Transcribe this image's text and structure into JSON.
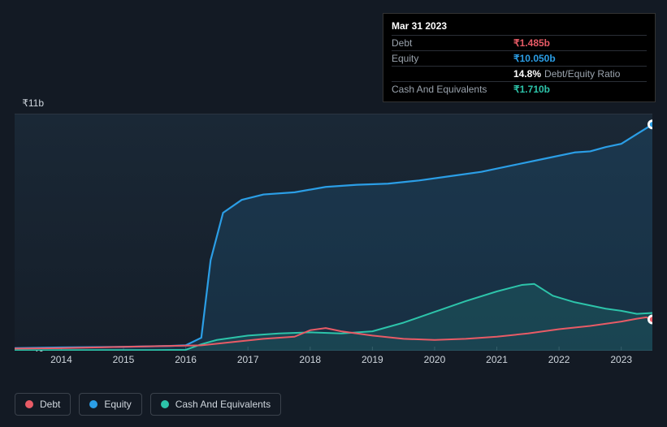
{
  "tooltip": {
    "title": "Mar 31 2023",
    "rows": [
      {
        "label": "Debt",
        "value": "₹1.485b",
        "color": "#e85b66"
      },
      {
        "label": "Equity",
        "value": "₹10.050b",
        "color": "#2b9ee6"
      },
      {
        "label": "",
        "value": "14.8%",
        "sub": "Debt/Equity Ratio",
        "color": "#ffffff"
      },
      {
        "label": "Cash And Equivalents",
        "value": "₹1.710b",
        "color": "#2dc4aa"
      }
    ]
  },
  "chart": {
    "type": "area-line",
    "background_color": "#131a24",
    "plot_bg_gradient": {
      "top": "#1a2836",
      "bottom": "#151e29"
    },
    "grid_color": "#2a3340",
    "axis_color": "#3b424c",
    "text_color": "#cfd6dd",
    "font_size_axis": 12,
    "x": {
      "min": 2013.25,
      "max": 2023.5,
      "ticks": [
        2014,
        2015,
        2016,
        2017,
        2018,
        2019,
        2020,
        2021,
        2022,
        2023
      ],
      "tick_labels": [
        "2014",
        "2015",
        "2016",
        "2017",
        "2018",
        "2019",
        "2020",
        "2021",
        "2022",
        "2023"
      ]
    },
    "y": {
      "min": 0,
      "max": 11,
      "unit": "b",
      "ticks": [
        0,
        11
      ],
      "tick_labels": [
        "₹0",
        "₹11b"
      ]
    },
    "series": [
      {
        "name": "Equity",
        "color": "#2b9ee6",
        "fill_opacity": 0.14,
        "line_width": 2.2,
        "area": true,
        "points": [
          [
            2013.25,
            0.12
          ],
          [
            2014,
            0.15
          ],
          [
            2015,
            0.18
          ],
          [
            2015.75,
            0.22
          ],
          [
            2016.0,
            0.25
          ],
          [
            2016.25,
            0.6
          ],
          [
            2016.4,
            4.2
          ],
          [
            2016.6,
            6.4
          ],
          [
            2016.9,
            7.0
          ],
          [
            2017.25,
            7.25
          ],
          [
            2017.75,
            7.35
          ],
          [
            2018.25,
            7.6
          ],
          [
            2018.75,
            7.7
          ],
          [
            2019.25,
            7.75
          ],
          [
            2019.75,
            7.9
          ],
          [
            2020.25,
            8.1
          ],
          [
            2020.75,
            8.3
          ],
          [
            2021.25,
            8.6
          ],
          [
            2021.75,
            8.9
          ],
          [
            2022.25,
            9.2
          ],
          [
            2022.5,
            9.25
          ],
          [
            2022.75,
            9.45
          ],
          [
            2023.0,
            9.6
          ],
          [
            2023.25,
            10.05
          ],
          [
            2023.5,
            10.5
          ]
        ]
      },
      {
        "name": "Cash And Equivalents",
        "color": "#2dc4aa",
        "fill_opacity": 0.14,
        "line_width": 2.0,
        "area": true,
        "points": [
          [
            2013.25,
            0.02
          ],
          [
            2015.5,
            0.03
          ],
          [
            2016.0,
            0.04
          ],
          [
            2016.25,
            0.3
          ],
          [
            2016.5,
            0.5
          ],
          [
            2017.0,
            0.7
          ],
          [
            2017.5,
            0.8
          ],
          [
            2018.0,
            0.85
          ],
          [
            2018.5,
            0.8
          ],
          [
            2019.0,
            0.9
          ],
          [
            2019.5,
            1.3
          ],
          [
            2020.0,
            1.8
          ],
          [
            2020.5,
            2.3
          ],
          [
            2021.0,
            2.75
          ],
          [
            2021.4,
            3.05
          ],
          [
            2021.6,
            3.1
          ],
          [
            2021.9,
            2.55
          ],
          [
            2022.25,
            2.25
          ],
          [
            2022.75,
            1.95
          ],
          [
            2023.0,
            1.85
          ],
          [
            2023.25,
            1.71
          ],
          [
            2023.5,
            1.75
          ]
        ]
      },
      {
        "name": "Debt",
        "color": "#e85b66",
        "fill_opacity": 0,
        "line_width": 2.0,
        "area": false,
        "points": [
          [
            2013.25,
            0.1
          ],
          [
            2014,
            0.12
          ],
          [
            2015,
            0.18
          ],
          [
            2015.75,
            0.22
          ],
          [
            2016.25,
            0.25
          ],
          [
            2016.75,
            0.4
          ],
          [
            2017.25,
            0.55
          ],
          [
            2017.75,
            0.65
          ],
          [
            2018.0,
            0.95
          ],
          [
            2018.25,
            1.05
          ],
          [
            2018.5,
            0.9
          ],
          [
            2019.0,
            0.7
          ],
          [
            2019.5,
            0.55
          ],
          [
            2020.0,
            0.5
          ],
          [
            2020.5,
            0.55
          ],
          [
            2021.0,
            0.65
          ],
          [
            2021.5,
            0.8
          ],
          [
            2022.0,
            1.0
          ],
          [
            2022.5,
            1.15
          ],
          [
            2023.0,
            1.35
          ],
          [
            2023.25,
            1.485
          ],
          [
            2023.4,
            1.55
          ],
          [
            2023.5,
            1.45
          ]
        ]
      }
    ],
    "end_markers": [
      {
        "series": "Equity",
        "x": 2023.5,
        "y": 10.5,
        "inner": "#2b9ee6"
      },
      {
        "series": "Debt",
        "x": 2023.5,
        "y": 1.45,
        "inner": "#e85b66"
      }
    ]
  },
  "legend": {
    "items": [
      {
        "label": "Debt",
        "color": "#e85b66"
      },
      {
        "label": "Equity",
        "color": "#2b9ee6"
      },
      {
        "label": "Cash And Equivalents",
        "color": "#2dc4aa"
      }
    ]
  }
}
